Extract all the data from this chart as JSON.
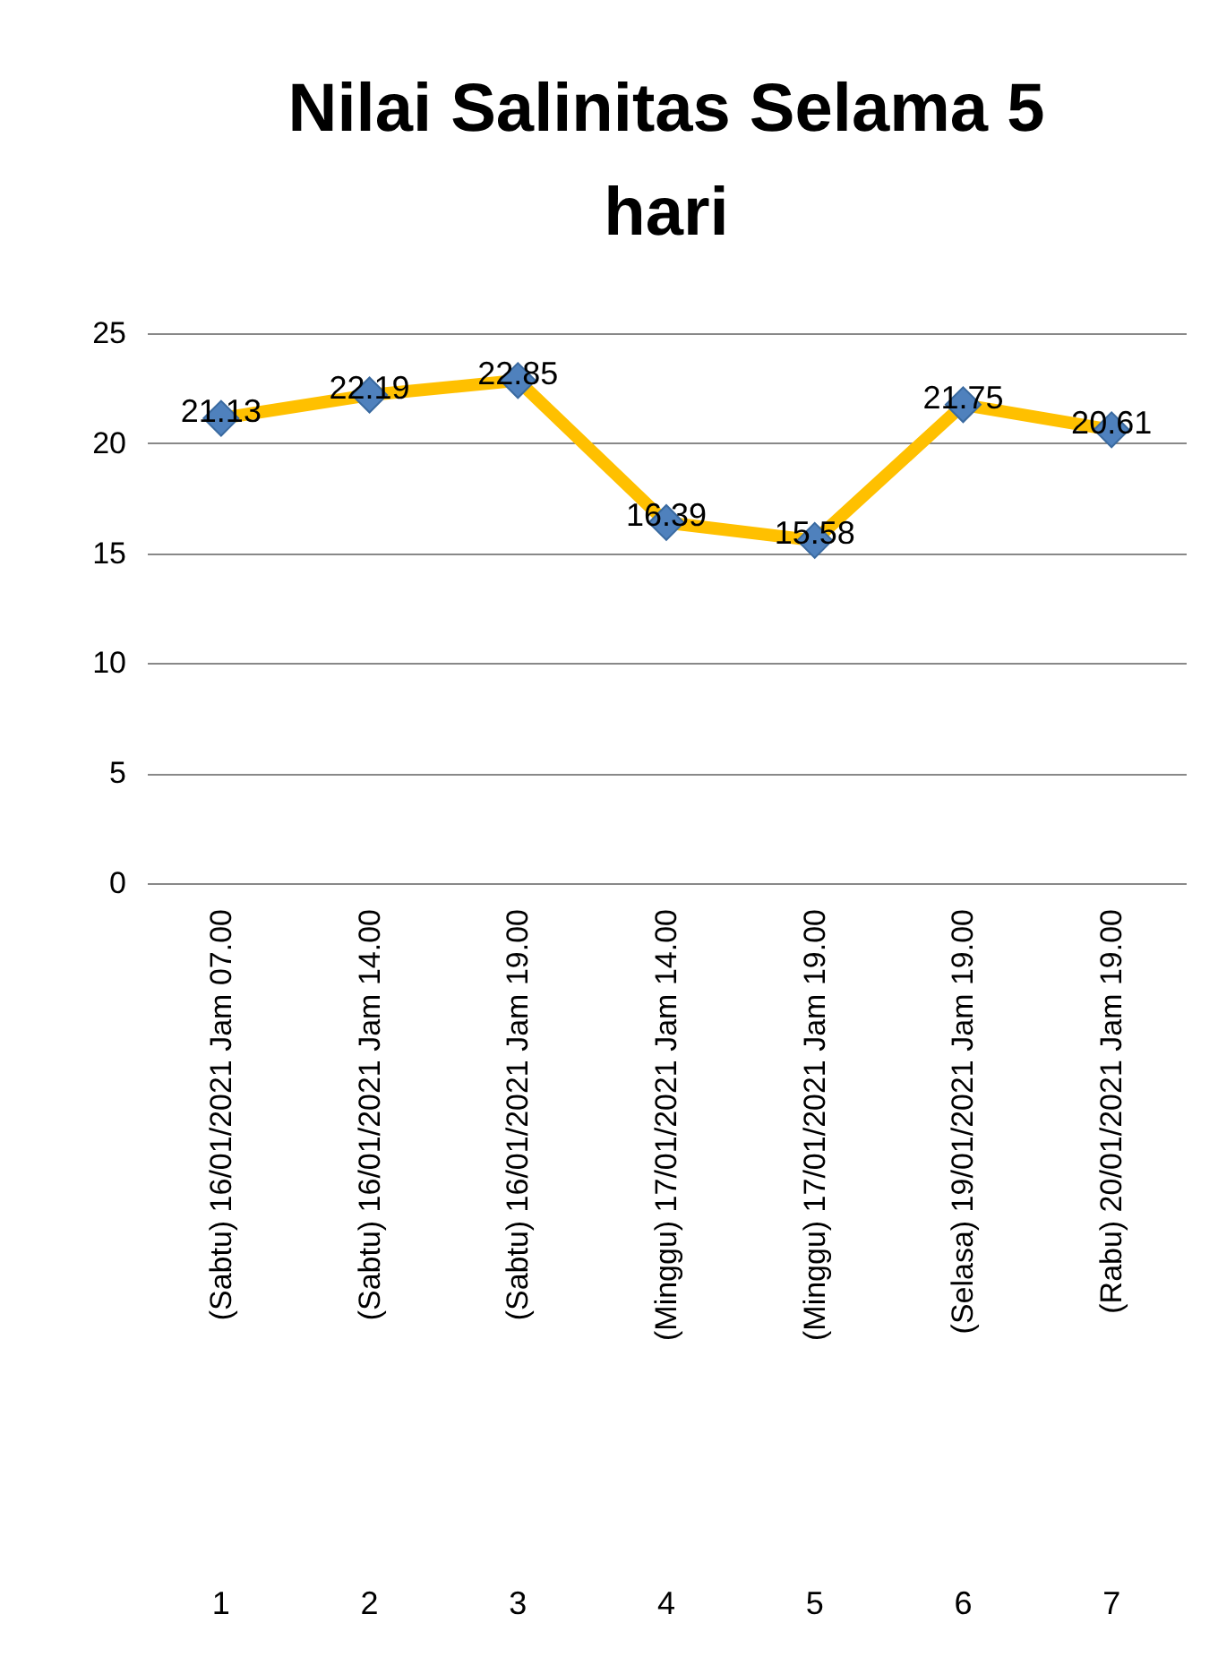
{
  "chart_data": {
    "type": "line",
    "title": "Nilai Salinitas Selama 5 hari",
    "categories": [
      "(Sabtu) 16/01/2021 Jam 07.00",
      "(Sabtu) 16/01/2021 Jam 14.00",
      "(Sabtu) 16/01/2021 Jam 19.00",
      "(Minggu) 17/01/2021 Jam 14.00",
      "(Minggu) 17/01/2021 Jam 19.00",
      "(Selasa)  19/01/2021 Jam 19.00",
      "(Rabu) 20/01/2021 Jam 19.00"
    ],
    "series": [
      {
        "color": "#ffc000",
        "values": [
          21.13,
          22.19,
          22.85,
          16.39,
          15.58,
          21.75,
          20.61
        ]
      }
    ],
    "annotations": [
      "1",
      "2",
      "3",
      "4",
      "5",
      "6",
      "7"
    ],
    "ylim": [
      0,
      25
    ],
    "yticks": [
      0,
      5,
      10,
      15,
      20,
      25
    ],
    "grid": "y",
    "marker": "diamond",
    "line_style": "solid",
    "data_labels": true
  }
}
